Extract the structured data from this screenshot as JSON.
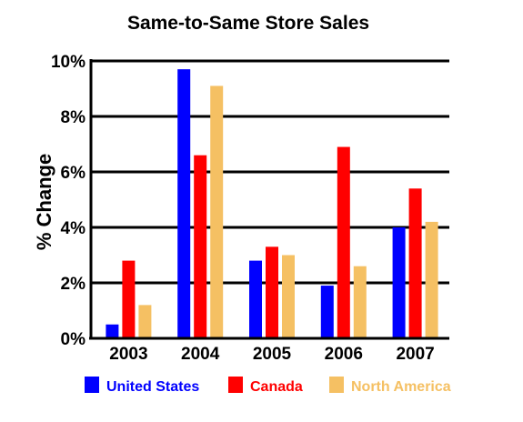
{
  "chart_data": {
    "type": "bar",
    "title": "Same-to-Same Store Sales",
    "xlabel": "",
    "ylabel": "% Change",
    "categories": [
      "2003",
      "2004",
      "2005",
      "2006",
      "2007"
    ],
    "yticks": [
      "0%",
      "2%",
      "4%",
      "6%",
      "8%",
      "10%"
    ],
    "ylim": [
      0,
      10
    ],
    "grid": true,
    "legend_position": "bottom",
    "series": [
      {
        "name": "United States",
        "color": "#0000ff",
        "values": [
          0.5,
          9.7,
          2.8,
          1.9,
          4.0
        ]
      },
      {
        "name": "Canada",
        "color": "#ff0000",
        "values": [
          2.8,
          6.6,
          3.3,
          6.9,
          5.4
        ]
      },
      {
        "name": "North America",
        "color": "#f5c063",
        "values": [
          1.2,
          9.1,
          3.0,
          2.6,
          4.2
        ]
      }
    ]
  }
}
